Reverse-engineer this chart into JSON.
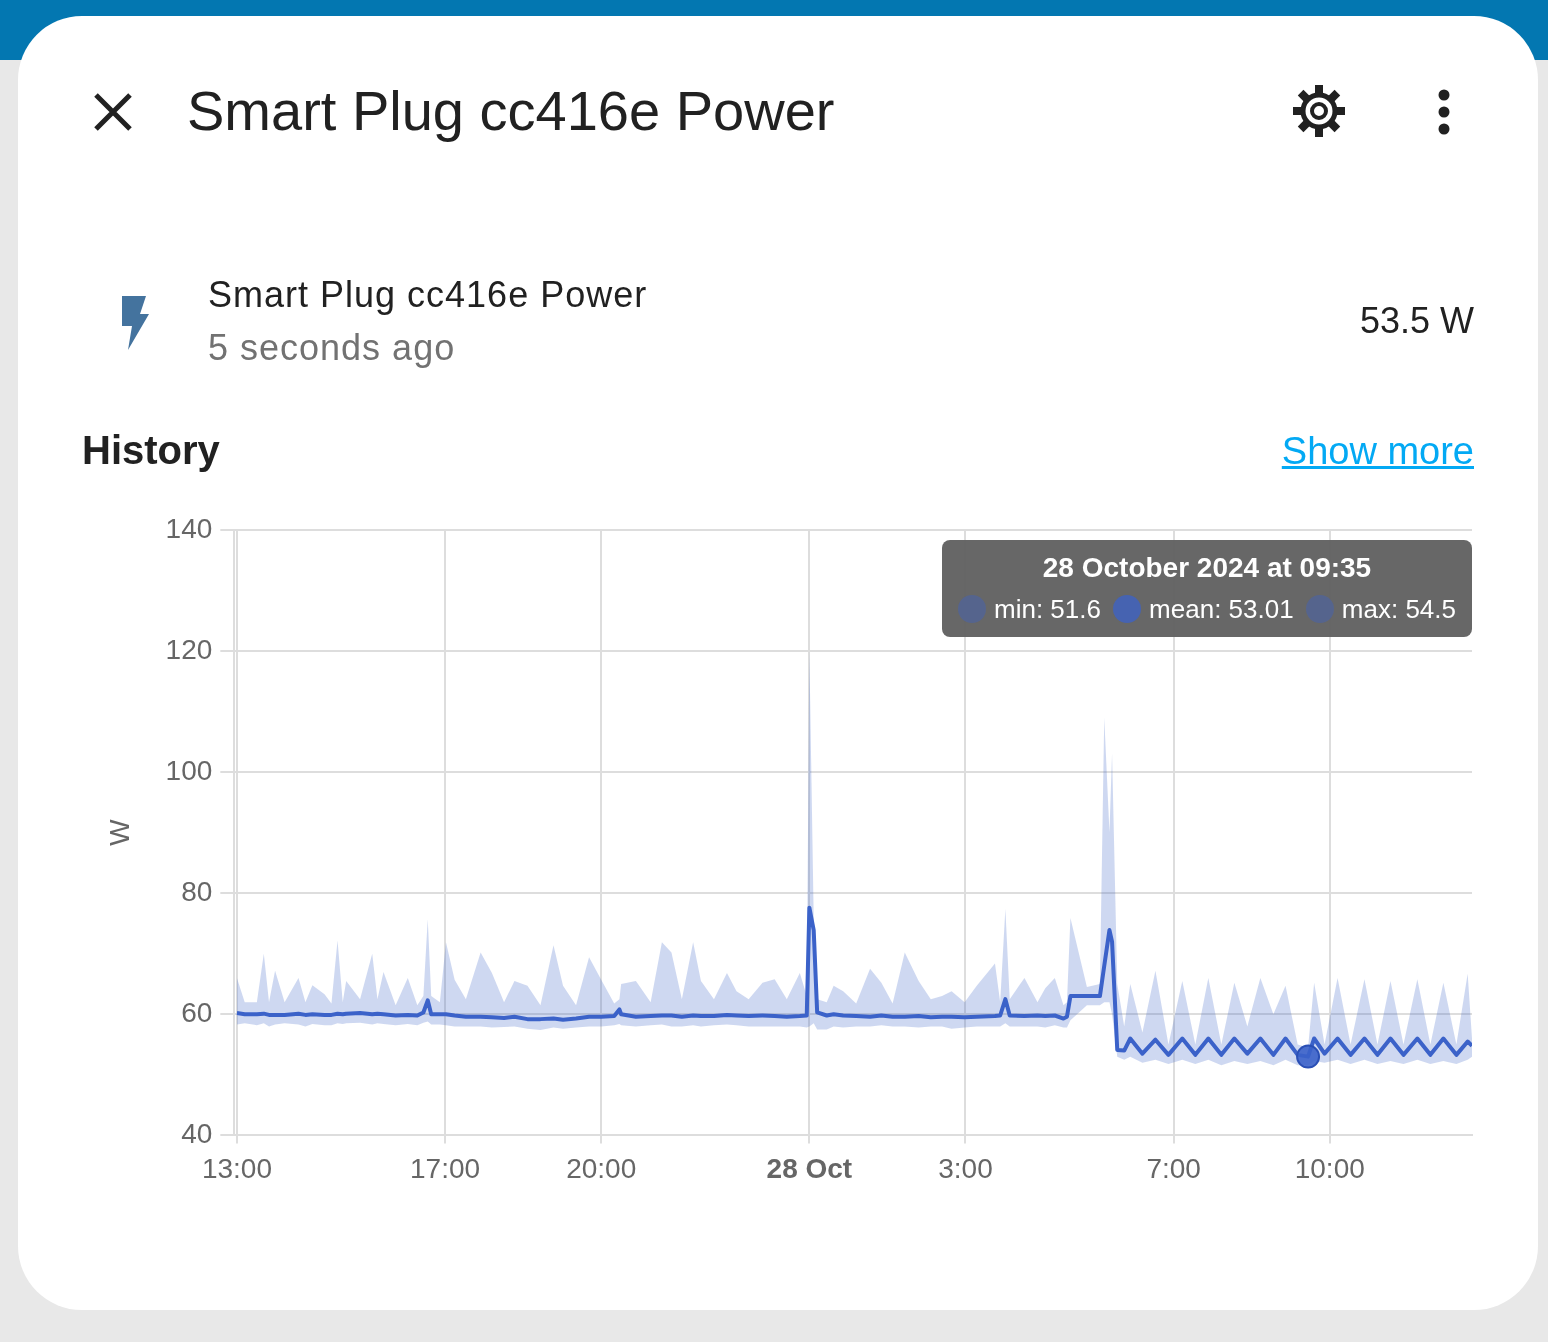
{
  "chart_data": {
    "type": "line",
    "title": "Smart Plug cc416e Power",
    "subtitle": "History",
    "ylabel": "W",
    "annotations": [
      "Smart Plug cc416e Power",
      "5 seconds ago",
      "53.5 W",
      "Show more",
      "28 October 2024 at 09:35",
      "min: 51.6",
      "mean: 53.01",
      "max: 54.5"
    ],
    "xlim": [
      "2024-10-27T12:57",
      "2024-10-28T12:44"
    ],
    "xticks": [
      {
        "value": "2024-10-27T13:00",
        "label": "13:00"
      },
      {
        "value": "2024-10-27T17:00",
        "label": "17:00"
      },
      {
        "value": "2024-10-27T20:00",
        "label": "20:00"
      },
      {
        "value": "2024-10-28T00:00",
        "label": "28 Oct"
      },
      {
        "value": "2024-10-28T03:00",
        "label": "3:00"
      },
      {
        "value": "2024-10-28T07:00",
        "label": "7:00"
      },
      {
        "value": "2024-10-28T10:00",
        "label": "10:00"
      }
    ],
    "ylim": [
      40,
      140
    ],
    "yticks": [
      40,
      60,
      80,
      100,
      120,
      140
    ],
    "grid": true,
    "legend": false,
    "line_style": "solid",
    "series": [
      {
        "color": "#3b62c9",
        "x": [
          "2024-10-27T13:00",
          "2024-10-27T13:09",
          "2024-10-27T13:23",
          "2024-10-27T13:31",
          "2024-10-27T13:37",
          "2024-10-27T13:44",
          "2024-10-27T13:55",
          "2024-10-27T14:11",
          "2024-10-27T14:19",
          "2024-10-27T14:27",
          "2024-10-27T14:41",
          "2024-10-27T14:49",
          "2024-10-27T14:56",
          "2024-10-27T15:02",
          "2024-10-27T15:06",
          "2024-10-27T15:22",
          "2024-10-27T15:36",
          "2024-10-27T15:42",
          "2024-10-27T15:49",
          "2024-10-27T16:03",
          "2024-10-27T16:17",
          "2024-10-27T16:28",
          "2024-10-27T16:35",
          "2024-10-27T16:40",
          "2024-10-27T16:44",
          "2024-10-27T16:54",
          "2024-10-27T17:01",
          "2024-10-27T17:11",
          "2024-10-27T17:24",
          "2024-10-27T17:41",
          "2024-10-27T17:54",
          "2024-10-27T18:08",
          "2024-10-27T18:20",
          "2024-10-27T18:35",
          "2024-10-27T18:50",
          "2024-10-27T19:05",
          "2024-10-27T19:16",
          "2024-10-27T19:31",
          "2024-10-27T19:46",
          "2024-10-27T20:00",
          "2024-10-27T20:15",
          "2024-10-27T20:21",
          "2024-10-27T20:23",
          "2024-10-27T20:40",
          "2024-10-27T20:57",
          "2024-10-27T21:10",
          "2024-10-27T21:21",
          "2024-10-27T21:33",
          "2024-10-27T21:46",
          "2024-10-27T21:55",
          "2024-10-27T22:10",
          "2024-10-27T22:25",
          "2024-10-27T22:36",
          "2024-10-27T22:50",
          "2024-10-27T23:06",
          "2024-10-27T23:20",
          "2024-10-27T23:34",
          "2024-10-27T23:49",
          "2024-10-27T23:57",
          "2024-10-28T00:00",
          "2024-10-28T00:05",
          "2024-10-28T00:09",
          "2024-10-28T00:20",
          "2024-10-28T00:28",
          "2024-10-28T00:39",
          "2024-10-28T00:54",
          "2024-10-28T01:10",
          "2024-10-28T01:23",
          "2024-10-28T01:36",
          "2024-10-28T01:50",
          "2024-10-28T02:06",
          "2024-10-28T02:20",
          "2024-10-28T02:33",
          "2024-10-28T02:44",
          "2024-10-28T02:59",
          "2024-10-28T03:13",
          "2024-10-28T03:34",
          "2024-10-28T03:40",
          "2024-10-28T03:46",
          "2024-10-28T03:51",
          "2024-10-28T04:08",
          "2024-10-28T04:23",
          "2024-10-28T04:32",
          "2024-10-28T04:43",
          "2024-10-28T04:53",
          "2024-10-28T04:57",
          "2024-10-28T05:01",
          "2024-10-28T05:20",
          "2024-10-28T05:35",
          "2024-10-28T05:40",
          "2024-10-28T05:46",
          "2024-10-28T05:49",
          "2024-10-28T05:55",
          "2024-10-28T06:03",
          "2024-10-28T06:10",
          "2024-10-28T06:24",
          "2024-10-28T06:39",
          "2024-10-28T06:54",
          "2024-10-28T07:10",
          "2024-10-28T07:25",
          "2024-10-28T07:40",
          "2024-10-28T07:55",
          "2024-10-28T08:10",
          "2024-10-28T08:25",
          "2024-10-28T08:40",
          "2024-10-28T08:55",
          "2024-10-28T09:09",
          "2024-10-28T09:23",
          "2024-10-28T09:35",
          "2024-10-28T09:42",
          "2024-10-28T09:54",
          "2024-10-28T10:09",
          "2024-10-28T10:24",
          "2024-10-28T10:40",
          "2024-10-28T10:55",
          "2024-10-28T11:10",
          "2024-10-28T11:25",
          "2024-10-28T11:41",
          "2024-10-28T11:56",
          "2024-10-28T12:11",
          "2024-10-28T12:26",
          "2024-10-28T12:39",
          "2024-10-28T12:44"
        ],
        "values": [
          60.2,
          60.0,
          60.0,
          60.1,
          59.9,
          59.9,
          59.9,
          60.1,
          59.9,
          60.0,
          59.9,
          59.9,
          60.1,
          60.0,
          60.1,
          60.2,
          60.0,
          60.1,
          60.0,
          59.8,
          59.9,
          59.8,
          60.3,
          62.3,
          60.0,
          60.0,
          60.0,
          59.8,
          59.6,
          59.6,
          59.5,
          59.4,
          59.6,
          59.2,
          59.2,
          59.3,
          59.1,
          59.3,
          59.6,
          59.6,
          59.7,
          60.8,
          60.0,
          59.6,
          59.7,
          59.8,
          59.8,
          59.6,
          59.8,
          59.7,
          59.7,
          59.9,
          59.8,
          59.7,
          59.8,
          59.7,
          59.6,
          59.7,
          59.8,
          77.6,
          73.9,
          60.3,
          59.8,
          60.0,
          59.8,
          59.7,
          59.6,
          59.8,
          59.6,
          59.6,
          59.7,
          59.5,
          59.6,
          59.6,
          59.5,
          59.6,
          59.7,
          59.8,
          62.5,
          59.8,
          59.7,
          59.8,
          59.7,
          59.8,
          59.3,
          59.6,
          63.0,
          63.0,
          63.0,
          68,
          73.9,
          72,
          54.1,
          54.0,
          56.0,
          53.5,
          55.8,
          53.3,
          56.0,
          53.3,
          56.0,
          53.3,
          56.0,
          53.5,
          56.0,
          53.3,
          56.0,
          53.3,
          53.01,
          56.0,
          53.5,
          56.0,
          53.3,
          56.0,
          53.3,
          56.0,
          53.3,
          56.0,
          53.3,
          56.0,
          53.3,
          55.5,
          54.8
        ],
        "lower": [
          58.3,
          58.5,
          58.2,
          58.5,
          58.0,
          58.3,
          58.5,
          58.3,
          58.0,
          58.4,
          58.2,
          58.2,
          58.5,
          58.4,
          58.5,
          58.6,
          58.3,
          58.5,
          58.4,
          58.2,
          58.4,
          58.2,
          58.6,
          58.8,
          58.3,
          58.3,
          58.2,
          58.0,
          58.0,
          58.0,
          57.8,
          57.9,
          58.0,
          57.6,
          57.4,
          57.8,
          57.6,
          57.8,
          58.0,
          58.0,
          58.2,
          58.4,
          58.2,
          58.0,
          58.2,
          58.3,
          58.0,
          58.0,
          58.2,
          58.0,
          58.2,
          58.3,
          58.2,
          58.0,
          58.0,
          58.0,
          58.0,
          58.0,
          57.8,
          58.0,
          58.5,
          57.5,
          57.5,
          58.0,
          57.8,
          58.0,
          58.0,
          58.2,
          58.0,
          58.0,
          57.8,
          58.0,
          58.0,
          57.6,
          57.8,
          58.0,
          58.0,
          58.0,
          58.5,
          58.0,
          58.0,
          58.0,
          57.8,
          58.2,
          57.8,
          57.8,
          59.0,
          61.5,
          61.5,
          62,
          62,
          60,
          53,
          52.5,
          53.0,
          52.0,
          52.5,
          51.8,
          52.5,
          51.8,
          52.5,
          51.6,
          52.3,
          51.8,
          52.3,
          51.6,
          52.5,
          51.6,
          51.6,
          52.3,
          52.0,
          52.5,
          51.8,
          52.5,
          51.8,
          52.3,
          51.8,
          52.5,
          51.8,
          52.3,
          51.8,
          52.5,
          53.0
        ],
        "upper": [
          66,
          62,
          62,
          70,
          62,
          67.2,
          62,
          66,
          62,
          64.8,
          63.3,
          61.8,
          72.2,
          62,
          65.5,
          62.5,
          70,
          62.5,
          67,
          61.5,
          66,
          61.5,
          63,
          75.7,
          63,
          62,
          71.9,
          65.7,
          62.5,
          70.2,
          66.8,
          62,
          65.5,
          64.7,
          61.5,
          71.4,
          64.7,
          61.5,
          69.4,
          65.7,
          61.8,
          62.5,
          65,
          65.5,
          62,
          71.9,
          70.2,
          62.5,
          71.9,
          65.5,
          62.5,
          66.8,
          63.8,
          62.5,
          65.2,
          65.8,
          62.5,
          66.8,
          63,
          120,
          76,
          62.5,
          62,
          64.7,
          63.8,
          61.8,
          67.5,
          65.2,
          61.8,
          70.2,
          65.5,
          62.5,
          63,
          63.8,
          62,
          64.7,
          68.4,
          62,
          77.4,
          62.5,
          66,
          62,
          64.3,
          66,
          61.5,
          62,
          75.9,
          64.5,
          65,
          109,
          90,
          103,
          65,
          58,
          65,
          57,
          67.2,
          55,
          65.5,
          55,
          66,
          55,
          65.2,
          58,
          66,
          60,
          64.7,
          55,
          54.5,
          65.2,
          55,
          66,
          55,
          65.8,
          55,
          65.5,
          55,
          65.8,
          55,
          65.2,
          55,
          66.7,
          56
        ]
      },
      {
        "type": "scatter",
        "color": "#3b62c9",
        "x": [
          "2024-10-28T09:35"
        ],
        "values": [
          53.01
        ]
      }
    ]
  }
}
